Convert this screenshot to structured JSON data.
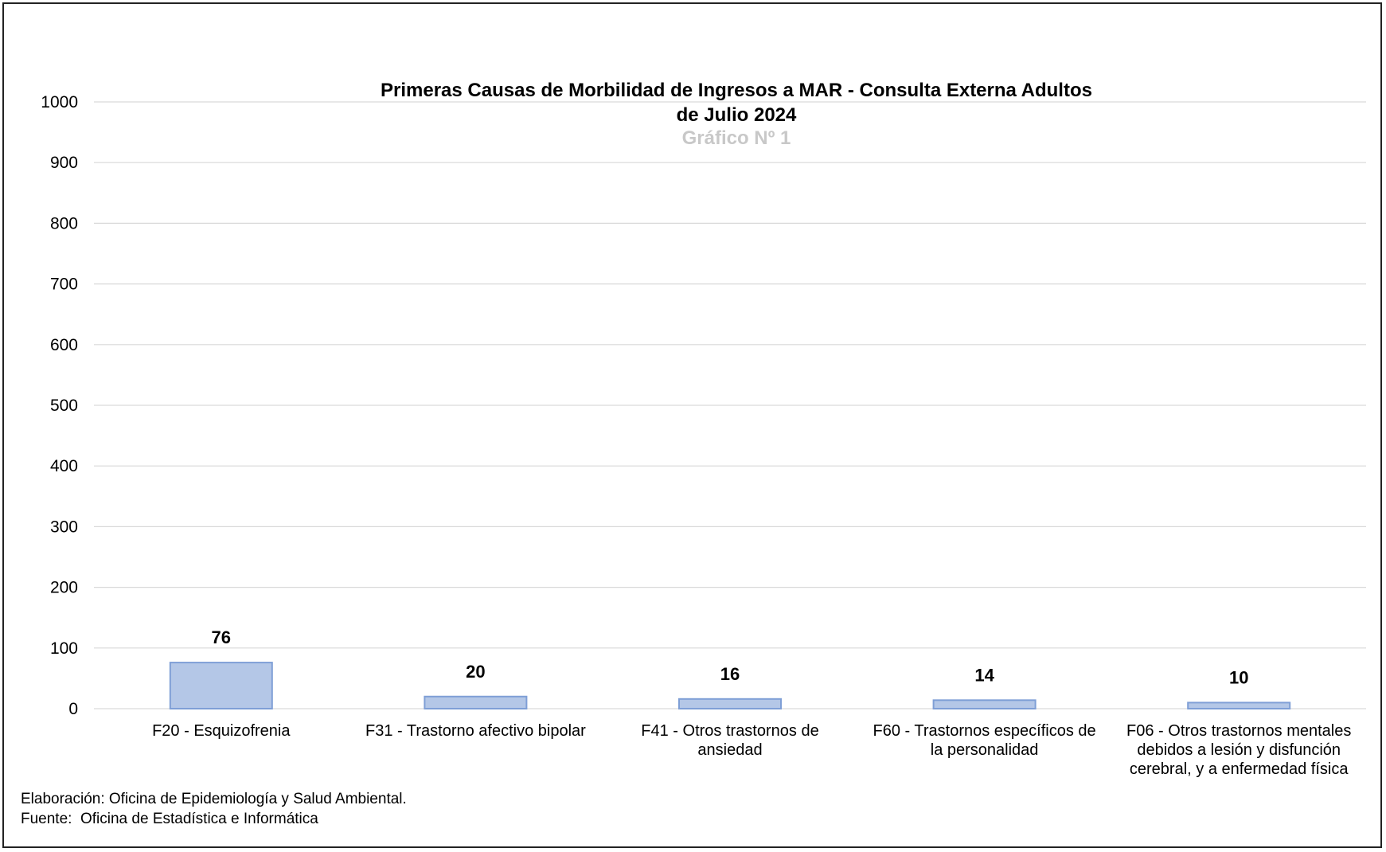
{
  "chart_data": {
    "type": "bar",
    "title": [
      "Primeras Causas de Morbilidad de Ingresos a MAR - Consulta Externa Adultos",
      "de Julio 2024"
    ],
    "subtitle": "Gráfico Nº 1",
    "categories": [
      [
        "F20  - Esquizofrenia"
      ],
      [
        "F31  - Trastorno afectivo bipolar"
      ],
      [
        "F41  - Otros trastornos de",
        "ansiedad"
      ],
      [
        "F60  - Trastornos específicos de",
        "la personalidad"
      ],
      [
        "F06  - Otros trastornos mentales",
        "debidos a lesión y disfunción",
        "cerebral, y a enfermedad física"
      ]
    ],
    "values": [
      76,
      20,
      16,
      14,
      10
    ],
    "ylim": [
      0,
      1000
    ],
    "yticks": [
      0,
      100,
      200,
      300,
      400,
      500,
      600,
      700,
      800,
      900,
      1000
    ],
    "grid": true,
    "bar_color": "#b4c7e7",
    "bar_edge_color": "#7f9fd6"
  },
  "footnotes": {
    "elaboracion": "Elaboración: Oficina de Epidemiología y Salud Ambiental.",
    "fuente": "Fuente:  Oficina de Estadística e Informática"
  }
}
